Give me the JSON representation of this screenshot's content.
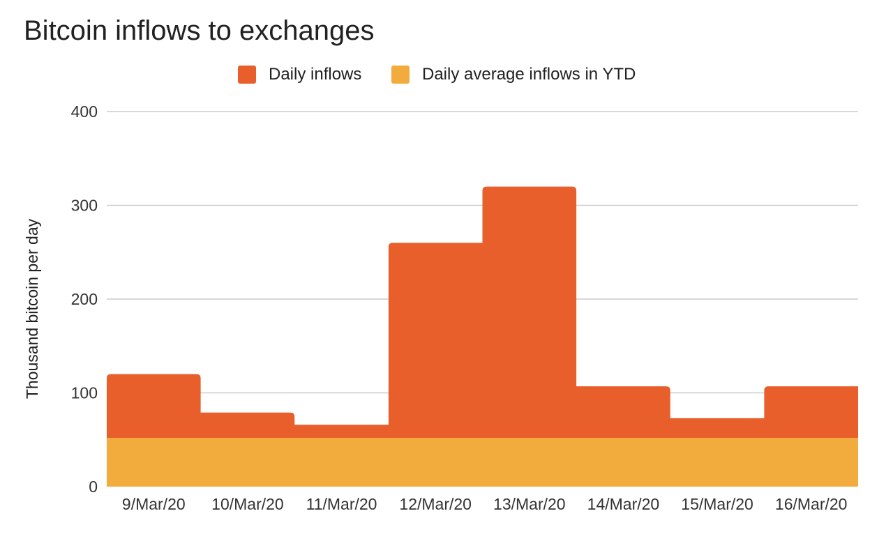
{
  "chart_data": {
    "type": "area",
    "title": "Bitcoin inflows to exchanges",
    "xlabel": "",
    "ylabel": "Thousand bitcoin per day",
    "ylim": [
      0,
      400
    ],
    "yticks": [
      0,
      100,
      200,
      300,
      400
    ],
    "categories": [
      "9/Mar/20",
      "10/Mar/20",
      "11/Mar/20",
      "12/Mar/20",
      "13/Mar/20",
      "14/Mar/20",
      "15/Mar/20",
      "16/Mar/20"
    ],
    "series": [
      {
        "name": "Daily inflows",
        "color": "#e85f2b",
        "values": [
          120,
          79,
          66,
          260,
          320,
          107,
          73,
          107
        ]
      },
      {
        "name": "Daily average inflows in YTD",
        "color": "#f1ac3d",
        "values": [
          52,
          52,
          52,
          52,
          52,
          52,
          52,
          52
        ]
      }
    ],
    "grid": true,
    "legend_position": "top-center",
    "gridline_color": "#cccccc"
  }
}
